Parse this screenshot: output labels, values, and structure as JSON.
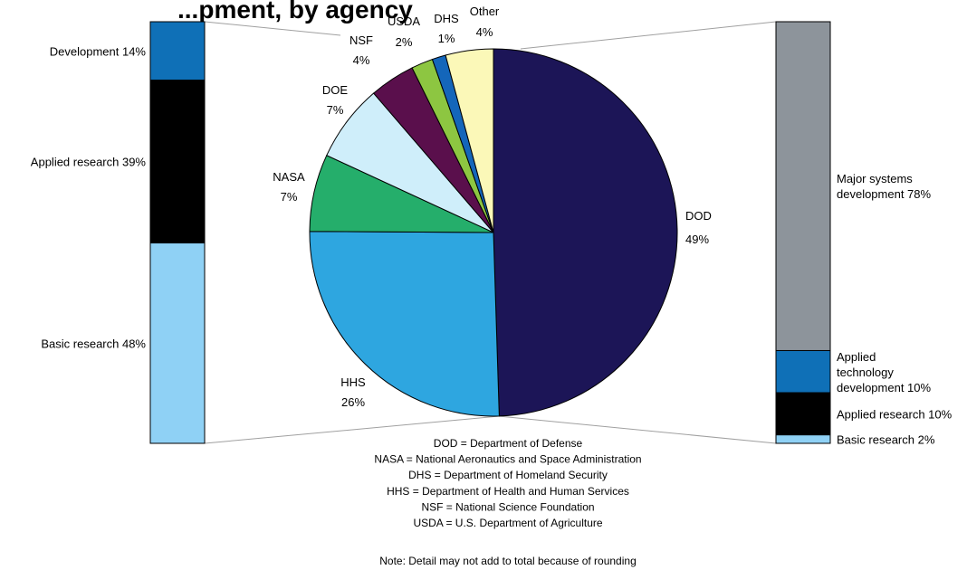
{
  "chart_data": {
    "type": "pie",
    "title": "...pment, by agency",
    "slices": [
      {
        "name": "DOD",
        "pct_label": "49%",
        "value": 49.5,
        "color": "#1c1557"
      },
      {
        "name": "HHS",
        "pct_label": "26%",
        "value": 25.6,
        "color": "#2ea6e0"
      },
      {
        "name": "NASA",
        "pct_label": "7%",
        "value": 6.8,
        "color": "#25ae6b"
      },
      {
        "name": "DOE",
        "pct_label": "7%",
        "value": 6.8,
        "color": "#cfeefa"
      },
      {
        "name": "NSF",
        "pct_label": "4%",
        "value": 4.0,
        "color": "#5a0f4c"
      },
      {
        "name": "USDA",
        "pct_label": "2%",
        "value": 1.9,
        "color": "#8dc641"
      },
      {
        "name": "DHS",
        "pct_label": "1%",
        "value": 1.2,
        "color": "#1466ba"
      },
      {
        "name": "Other",
        "pct_label": "4%",
        "value": 4.2,
        "color": "#fbf8b8"
      }
    ],
    "left_bar": {
      "segments": [
        {
          "label": "Development 14%",
          "value": 14,
          "color": "#0f70b7"
        },
        {
          "label": "Applied research 39%",
          "value": 39,
          "color": "#000000"
        },
        {
          "label": "Basic research 48%",
          "value": 48,
          "color": "#8fd1f5"
        }
      ]
    },
    "right_bar": {
      "segments": [
        {
          "label": "Major systems development 78%",
          "lines": [
            "Major systems",
            "development 78%"
          ],
          "value": 78,
          "color": "#8d949b"
        },
        {
          "label": "Applied technology development 10%",
          "lines": [
            "Applied",
            "technology",
            "development 10%"
          ],
          "value": 10,
          "color": "#0f70b7"
        },
        {
          "label": "Applied research 10%",
          "lines": [
            "Applied research 10%"
          ],
          "value": 10,
          "color": "#000000"
        },
        {
          "label": "Basic research 2%",
          "lines": [
            "Basic research 2%"
          ],
          "value": 2,
          "color": "#8fd1f5"
        }
      ]
    },
    "footnotes": [
      "DOD = Department of Defense",
      "NASA = National Aeronautics and Space Administration",
      "DHS = Department of Homeland Security",
      "HHS = Department of Health and Human Services",
      "NSF = National Science Foundation",
      "USDA = U.S. Department of Agriculture"
    ],
    "note": "Note:  Detail may not add to total because of rounding"
  }
}
